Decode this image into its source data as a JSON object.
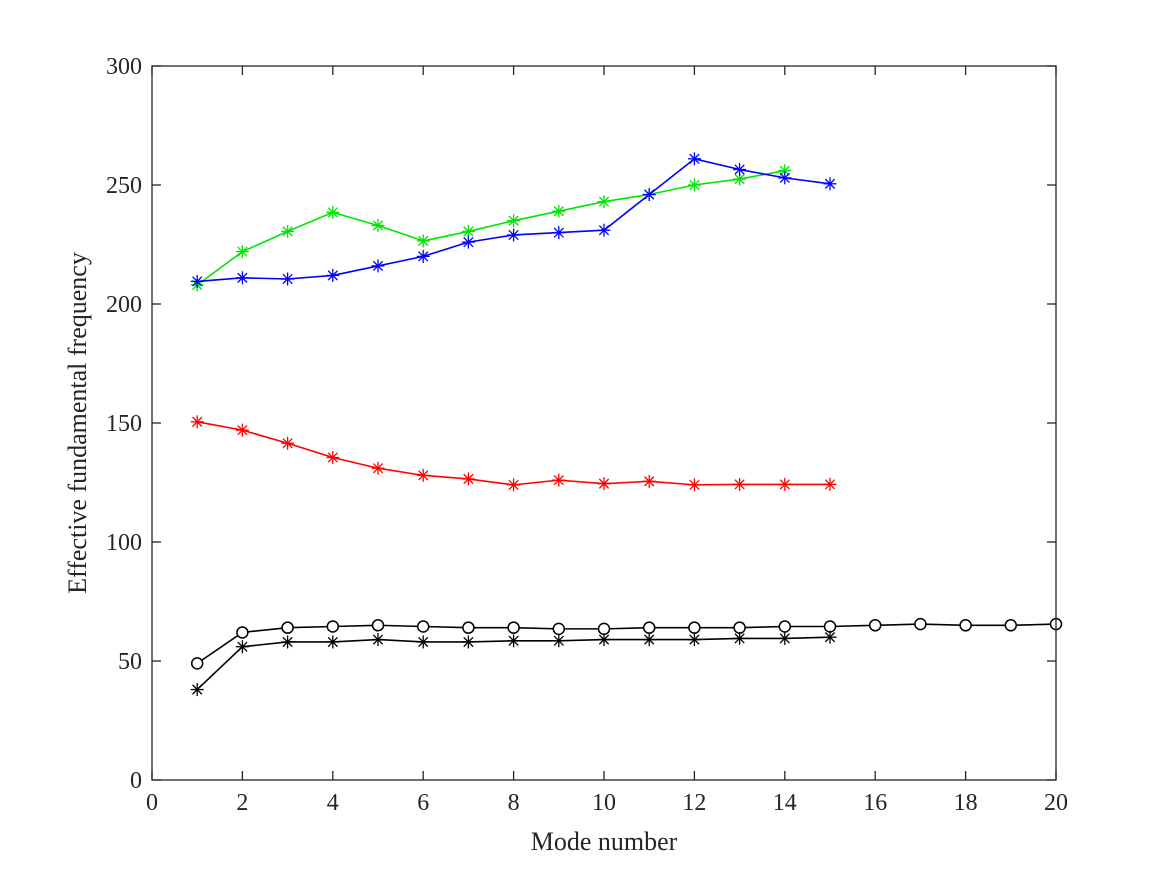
{
  "chart_data": {
    "type": "line",
    "title": "",
    "xlabel": "Mode number",
    "ylabel": "Effective fundamental frequency",
    "xlim": [
      0,
      20
    ],
    "ylim": [
      0,
      300
    ],
    "xticks": [
      0,
      2,
      4,
      6,
      8,
      10,
      12,
      14,
      16,
      18,
      20
    ],
    "yticks": [
      0,
      50,
      100,
      150,
      200,
      250,
      300
    ],
    "grid": false,
    "legend": "none",
    "series": [
      {
        "name": "green-asterisk",
        "color": "#00e600",
        "marker": "asterisk",
        "x": [
          1,
          2,
          3,
          4,
          5,
          6,
          7,
          8,
          9,
          10,
          11,
          12,
          13,
          14
        ],
        "y": [
          208,
          222,
          230.5,
          238.5,
          233,
          226.5,
          230.5,
          235,
          239,
          243,
          246,
          250,
          252.5,
          256
        ]
      },
      {
        "name": "blue-asterisk",
        "color": "#0000ff",
        "marker": "asterisk",
        "x": [
          1,
          2,
          3,
          4,
          5,
          6,
          7,
          8,
          9,
          10,
          11,
          12,
          13,
          14,
          15
        ],
        "y": [
          209.5,
          211,
          210.5,
          212,
          216,
          220,
          226,
          229,
          230,
          231,
          246,
          261,
          256.5,
          253,
          250.5
        ]
      },
      {
        "name": "red-asterisk",
        "color": "#ff0000",
        "marker": "asterisk",
        "x": [
          1,
          2,
          3,
          4,
          5,
          6,
          7,
          8,
          9,
          10,
          11,
          12,
          13,
          14,
          15
        ],
        "y": [
          150.5,
          147,
          141.5,
          135.5,
          131,
          128,
          126.5,
          124,
          126,
          124.5,
          125.5,
          124,
          124.2,
          124.2,
          124.2
        ]
      },
      {
        "name": "black-circle",
        "color": "#000000",
        "marker": "circle",
        "x": [
          1,
          2,
          3,
          4,
          5,
          6,
          7,
          8,
          9,
          10,
          11,
          12,
          13,
          14,
          15,
          16,
          17,
          18,
          19,
          20
        ],
        "y": [
          49,
          62,
          64,
          64.5,
          65,
          64.5,
          64,
          64,
          63.5,
          63.5,
          64,
          64,
          64,
          64.5,
          64.5,
          65,
          65.5,
          65,
          65,
          65.5
        ]
      },
      {
        "name": "black-asterisk",
        "color": "#000000",
        "marker": "asterisk",
        "x": [
          1,
          2,
          3,
          4,
          5,
          6,
          7,
          8,
          9,
          10,
          11,
          12,
          13,
          14,
          15
        ],
        "y": [
          38,
          56,
          58,
          58,
          59,
          58,
          58,
          58.5,
          58.5,
          59,
          59,
          59,
          59.5,
          59.5,
          60
        ]
      }
    ]
  }
}
